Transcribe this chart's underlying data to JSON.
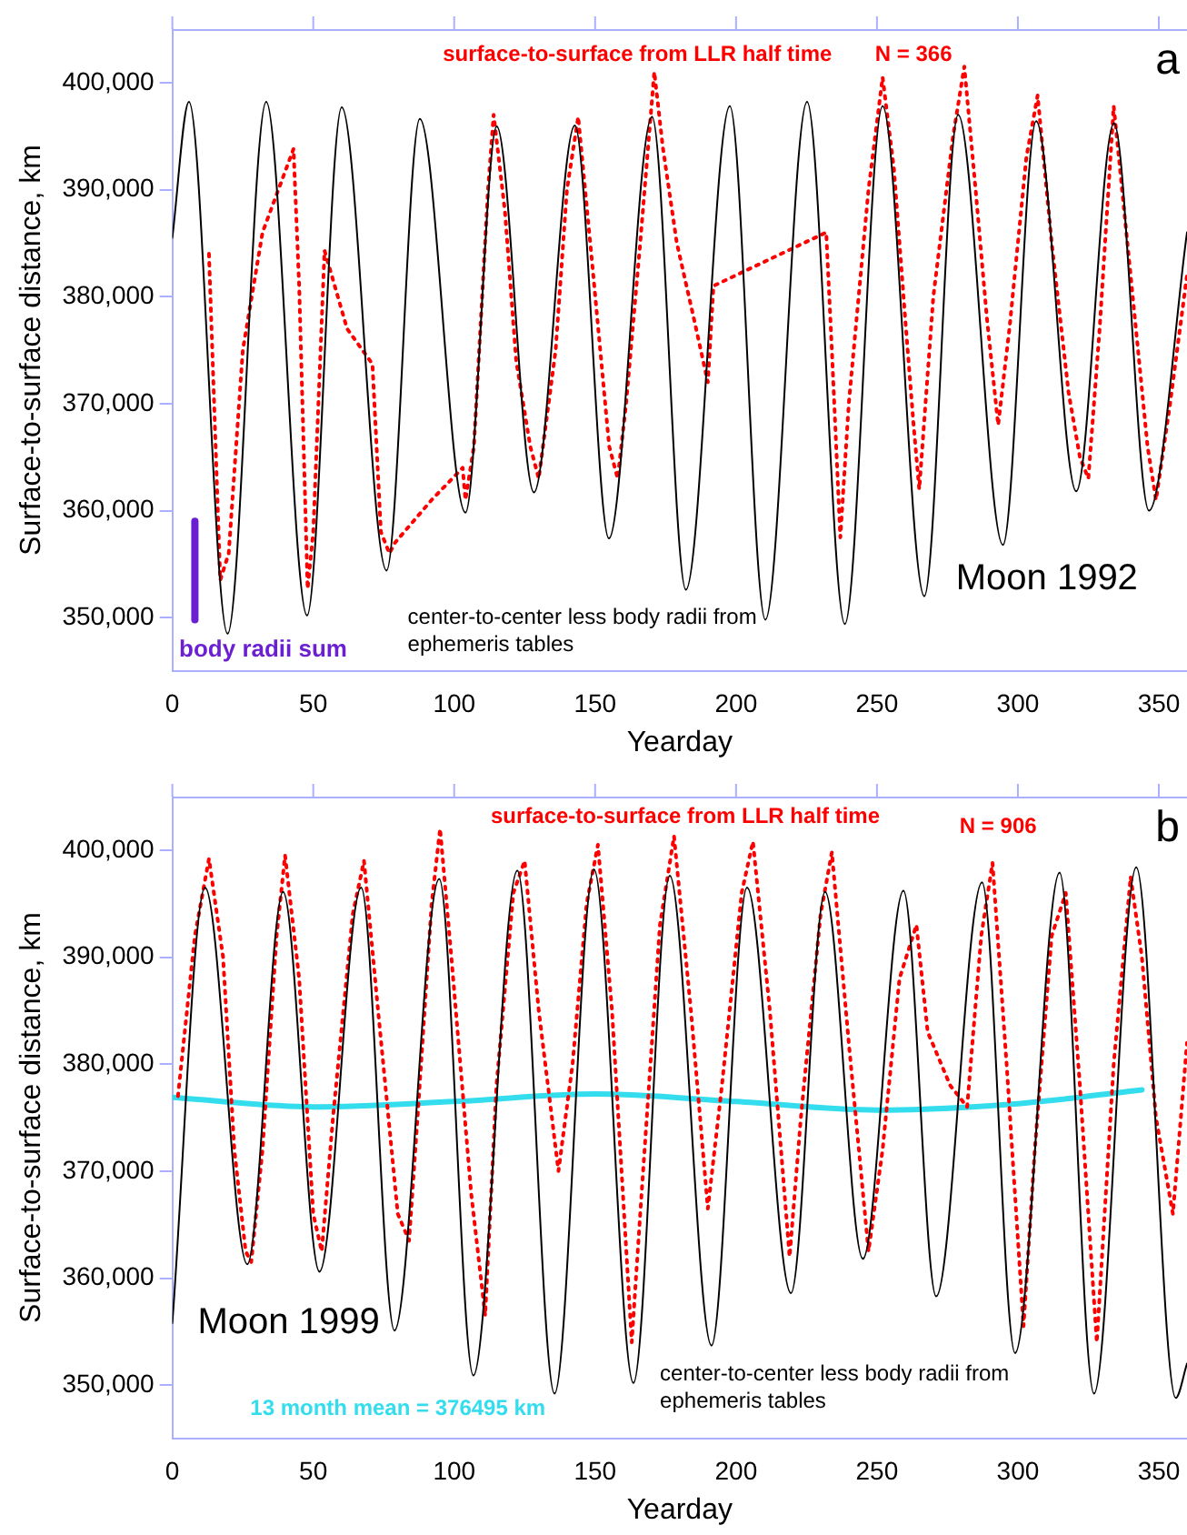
{
  "chart_data": [
    {
      "type": "line",
      "xlabel": "Yearday",
      "ylabel": "Surface-to-surface distance, km",
      "xlim": [
        0,
        360
      ],
      "xticks": [
        0,
        50,
        100,
        150,
        200,
        250,
        300,
        350
      ],
      "ylim": [
        345000,
        405000
      ],
      "yticks": [
        {
          "value": 350000,
          "label": "350,000"
        },
        {
          "value": 360000,
          "label": "360,000"
        },
        {
          "value": 370000,
          "label": "370,000"
        },
        {
          "value": 380000,
          "label": "380,000"
        },
        {
          "value": 390000,
          "label": "390,000"
        },
        {
          "value": 400000,
          "label": "400,000"
        }
      ],
      "grid": false,
      "legend": false,
      "annotations": [
        "N = 366",
        "a",
        "Moon 1992"
      ],
      "series": [
        {
          "name": "center-to-center less body radii from ephemeris tables",
          "color": "#000000",
          "line_style": "solid",
          "x": [
            0,
            5.9,
            19.6,
            33.3,
            47.8,
            60.1,
            76,
            87.8,
            104,
            115.1,
            128.3,
            142.8,
            154.9,
            170.2,
            182.2,
            197.8,
            210.4,
            225.2,
            238.6,
            252,
            266.8,
            278.8,
            294.7,
            306.5,
            320.7,
            334.1,
            346.5,
            360
          ],
          "values": [
            385500,
            398200,
            348500,
            398200,
            350200,
            397700,
            354400,
            396600,
            359800,
            395900,
            361700,
            396000,
            357400,
            396800,
            352600,
            397800,
            349800,
            398200,
            349400,
            397800,
            352000,
            397000,
            356800,
            396400,
            361800,
            396200,
            360000,
            386000
          ]
        },
        {
          "name": "surface-to-surface from LLR half time",
          "color": "#ff0000",
          "line_style": "dotted",
          "x": [
            13,
            17,
            20,
            25,
            32,
            43,
            45,
            48,
            50,
            54,
            62,
            71,
            74,
            77,
            79,
            92,
            103,
            104,
            107,
            112,
            114,
            118,
            122,
            127,
            130,
            136,
            140,
            144,
            149,
            155,
            158,
            161,
            166,
            171,
            174,
            179,
            185,
            190,
            192,
            232,
            234,
            237,
            240,
            247,
            252,
            256,
            260,
            263,
            265,
            270,
            277,
            281,
            285,
            289,
            293,
            297,
            303,
            307,
            312,
            318,
            322,
            325,
            329,
            334,
            340,
            346,
            349,
            354,
            360
          ],
          "values": [
            384000,
            353500,
            356000,
            375000,
            386000,
            393800,
            381000,
            352700,
            358000,
            384300,
            377000,
            373700,
            358000,
            356000,
            357000,
            361000,
            364000,
            361000,
            366000,
            390000,
            397000,
            388000,
            374000,
            366000,
            363000,
            375000,
            390000,
            396800,
            383000,
            366000,
            363000,
            370000,
            385000,
            401000,
            394000,
            385000,
            378000,
            372000,
            381000,
            386000,
            375000,
            357500,
            370000,
            390000,
            400500,
            392000,
            378000,
            368000,
            362000,
            380000,
            395000,
            401500,
            390000,
            378000,
            368000,
            377000,
            393000,
            398800,
            385000,
            371000,
            365000,
            363000,
            377000,
            397800,
            382000,
            366000,
            361000,
            370000,
            382000
          ]
        },
        {
          "name": "body radii sum",
          "color": "#6a1fd0",
          "line_style": "solid",
          "x": [
            8,
            8
          ],
          "values": [
            349800,
            359000
          ]
        }
      ]
    },
    {
      "type": "line",
      "xlabel": "Yearday",
      "ylabel": "Surface-to-surface distance, km",
      "xlim": [
        0,
        360
      ],
      "xticks": [
        0,
        50,
        100,
        150,
        200,
        250,
        300,
        350
      ],
      "ylim": [
        345000,
        405000
      ],
      "yticks": [
        {
          "value": 350000,
          "label": "350,000"
        },
        {
          "value": 360000,
          "label": "360,000"
        },
        {
          "value": 370000,
          "label": "370,000"
        },
        {
          "value": 380000,
          "label": "380,000"
        },
        {
          "value": 390000,
          "label": "390,000"
        },
        {
          "value": 400000,
          "label": "400,000"
        }
      ],
      "grid": false,
      "legend": false,
      "annotations": [
        "N = 906",
        "b",
        "Moon 1999"
      ],
      "series": [
        {
          "name": "center-to-center less body radii from ephemeris tables",
          "color": "#000000",
          "line_style": "solid",
          "x": [
            0,
            11.6,
            26.6,
            39.3,
            52.2,
            67,
            78.8,
            94.7,
            106.8,
            122.4,
            135.6,
            149.6,
            163.6,
            176.5,
            191.3,
            203.9,
            219.5,
            231.6,
            245,
            259.4,
            271,
            287.3,
            299,
            314.8,
            327,
            342,
            356,
            360
          ],
          "values": [
            355800,
            396500,
            361300,
            396100,
            360600,
            396500,
            355100,
            397300,
            350900,
            398100,
            349200,
            398200,
            350200,
            397600,
            353700,
            396500,
            358600,
            396100,
            361800,
            396200,
            358300,
            397000,
            353000,
            397900,
            349200,
            398400,
            348800,
            352000
          ]
        },
        {
          "name": "surface-to-surface from LLR half time",
          "color": "#ff0000",
          "line_style": "dotted",
          "x": [
            2,
            8,
            13,
            18,
            22,
            26,
            28,
            32,
            37,
            40,
            45,
            50,
            53,
            57,
            64,
            68,
            73,
            80,
            84,
            87,
            92,
            95,
            99,
            106,
            111,
            115,
            121,
            125,
            130,
            137,
            142,
            147,
            151,
            156,
            163,
            166,
            173,
            178,
            184,
            190,
            195,
            202,
            206,
            212,
            219,
            223,
            230,
            234,
            240,
            247,
            252,
            258,
            264,
            268,
            276,
            282,
            287,
            291,
            296,
            302,
            306,
            312,
            317,
            322,
            328,
            334,
            340,
            344,
            349,
            355,
            360
          ],
          "values": [
            377000,
            392000,
            399200,
            390000,
            372000,
            362500,
            361500,
            372000,
            392000,
            399500,
            388000,
            366000,
            362500,
            375000,
            394000,
            399000,
            385000,
            366000,
            363500,
            375000,
            395000,
            402000,
            390000,
            368000,
            356500,
            378000,
            396000,
            399000,
            385000,
            370000,
            380000,
            395000,
            400500,
            385000,
            354000,
            366000,
            393000,
            401300,
            385000,
            366500,
            378000,
            396000,
            400800,
            385000,
            362000,
            375000,
            394000,
            399800,
            382000,
            362500,
            372000,
            388000,
            393000,
            383000,
            378000,
            376000,
            392000,
            398800,
            380000,
            355500,
            372000,
            392000,
            396000,
            378000,
            354000,
            380000,
            397500,
            390000,
            375000,
            366000,
            382000
          ]
        },
        {
          "name": "13 month mean = 376495 km",
          "color": "#33ddee",
          "line_style": "solid",
          "x": [
            0,
            50,
            100,
            150,
            200,
            250,
            300,
            344
          ],
          "values": [
            376900,
            376000,
            376500,
            377200,
            376500,
            375700,
            376300,
            377600
          ]
        }
      ]
    }
  ]
}
